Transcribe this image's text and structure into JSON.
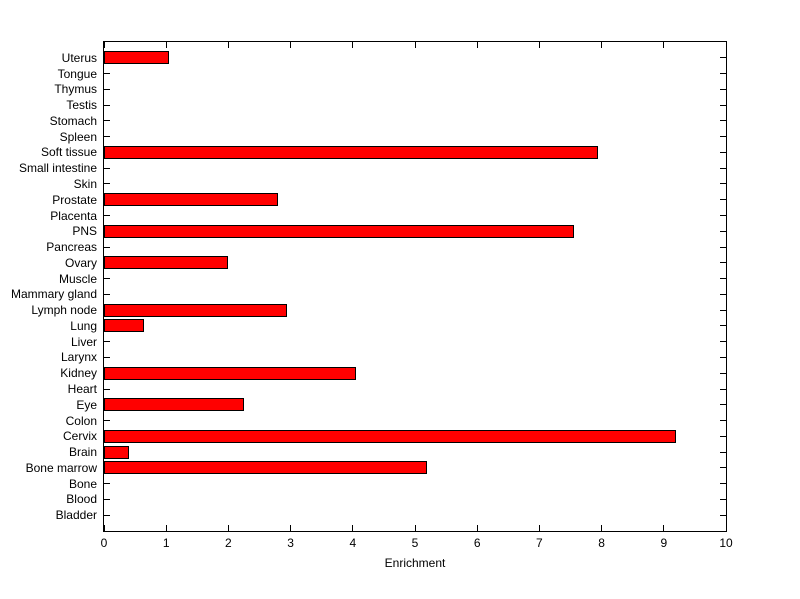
{
  "chart_data": {
    "type": "bar",
    "orientation": "horizontal",
    "title": "",
    "xlabel": "Enrichment",
    "ylabel": "",
    "xlim": [
      0,
      10
    ],
    "xticks": [
      0,
      1,
      2,
      3,
      4,
      5,
      6,
      7,
      8,
      9,
      10
    ],
    "grid": false,
    "legend": false,
    "bar_color": "#ff0000",
    "bar_edge_color": "#000000",
    "axis_color": "#000000",
    "background_color": "#ffffff",
    "categories_order": "top_to_bottom",
    "categories": [
      "Uterus",
      "Tongue",
      "Thymus",
      "Testis",
      "Stomach",
      "Spleen",
      "Soft tissue",
      "Small intestine",
      "Skin",
      "Prostate",
      "Placenta",
      "PNS",
      "Pancreas",
      "Ovary",
      "Muscle",
      "Mammary gland",
      "Lymph node",
      "Lung",
      "Liver",
      "Larynx",
      "Kidney",
      "Heart",
      "Eye",
      "Colon",
      "Cervix",
      "Brain",
      "Bone marrow",
      "Bone",
      "Blood",
      "Bladder"
    ],
    "values": [
      1.05,
      0,
      0,
      0,
      0,
      0,
      7.95,
      0,
      0,
      2.8,
      0,
      7.55,
      0,
      2.0,
      0,
      0,
      2.95,
      0.65,
      0,
      0,
      4.05,
      0,
      2.25,
      0,
      9.2,
      0.4,
      5.2,
      0,
      0,
      0
    ]
  }
}
